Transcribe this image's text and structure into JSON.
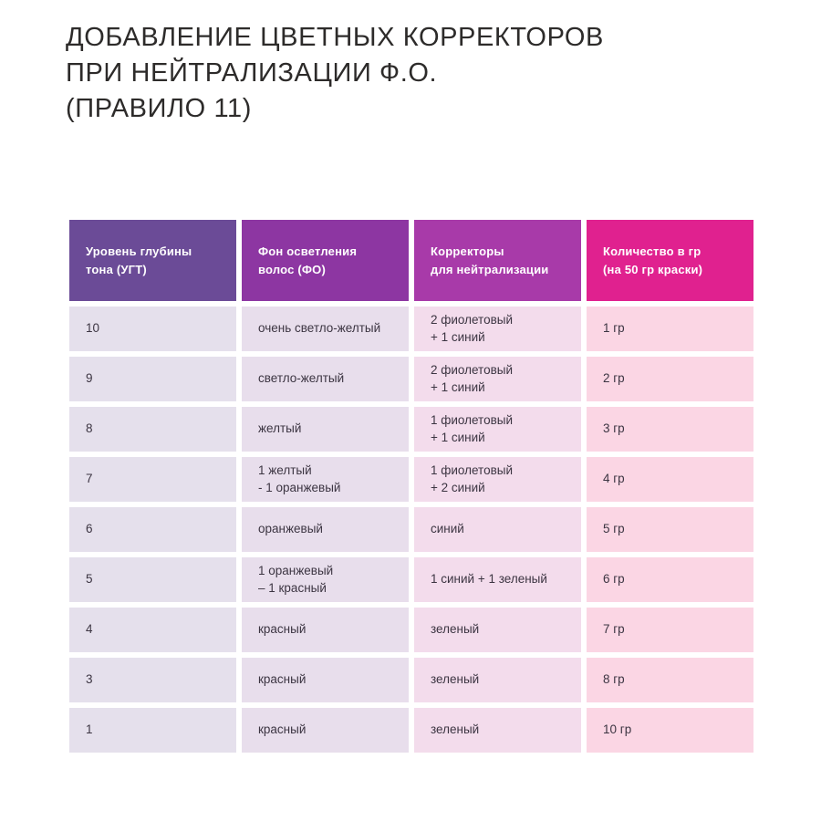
{
  "chart_data": {
    "type": "table",
    "title": "ДОБАВЛЕНИЕ ЦВЕТНЫХ КОРРЕКТОРОВ\nПРИ НЕЙТРАЛИЗАЦИИ Ф.О.\n(ПРАВИЛО 11)",
    "columns": [
      {
        "label": "Уровень глубины\nтона (УГТ)",
        "header_color": "#6b4b97",
        "cell_color": "#e5e0ec"
      },
      {
        "label": "Фон осветления\nволос (ФО)",
        "header_color": "#8d36a2",
        "cell_color": "#e8deec"
      },
      {
        "label": "Корректоры\nдля нейтрализации",
        "header_color": "#a83aa9",
        "cell_color": "#f3dcec"
      },
      {
        "label": "Количество в гр\n(на 50 гр краски)",
        "header_color": "#e0218f",
        "cell_color": "#fbd6e4"
      }
    ],
    "rows": [
      [
        "10",
        "очень светло-желтый",
        "2 фиолетовый\n+ 1 синий",
        "1 гр"
      ],
      [
        "9",
        "светло-желтый",
        "2 фиолетовый\n+ 1 синий",
        "2 гр"
      ],
      [
        "8",
        "желтый",
        "1 фиолетовый\n+ 1 синий",
        "3 гр"
      ],
      [
        "7",
        "1 желтый\n- 1 оранжевый",
        "1 фиолетовый\n+ 2 синий",
        "4 гр"
      ],
      [
        "6",
        "оранжевый",
        "синий",
        "5 гр"
      ],
      [
        "5",
        "1 оранжевый\n– 1 красный",
        "1 синий + 1 зеленый",
        "6 гр"
      ],
      [
        "4",
        "красный",
        "зеленый",
        "7 гр"
      ],
      [
        "3",
        "красный",
        "зеленый",
        "8 гр"
      ],
      [
        "1",
        "красный",
        "зеленый",
        "10 гр"
      ]
    ]
  }
}
